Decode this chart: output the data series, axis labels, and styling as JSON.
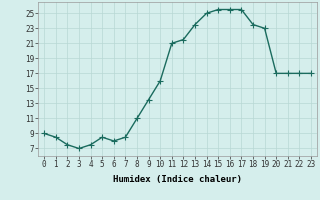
{
  "x": [
    0,
    1,
    2,
    3,
    4,
    5,
    6,
    7,
    8,
    9,
    10,
    11,
    12,
    13,
    14,
    15,
    16,
    17,
    18,
    19,
    20,
    21,
    22,
    23
  ],
  "y": [
    9,
    8.5,
    7.5,
    7,
    7.5,
    8.5,
    8,
    8.5,
    11,
    13.5,
    16,
    21,
    21.5,
    23.5,
    25,
    25.5,
    25.5,
    25.5,
    23.5,
    23,
    17,
    17,
    17,
    17
  ],
  "line_color": "#1a6b5e",
  "marker_color": "#1a6b5e",
  "bg_color": "#d5eeec",
  "grid_color": "#b8d8d4",
  "xlabel": "Humidex (Indice chaleur)",
  "xlim": [
    -0.5,
    23.5
  ],
  "ylim": [
    6,
    26.5
  ],
  "yticks": [
    7,
    9,
    11,
    13,
    15,
    17,
    19,
    21,
    23,
    25
  ],
  "xticks": [
    0,
    1,
    2,
    3,
    4,
    5,
    6,
    7,
    8,
    9,
    10,
    11,
    12,
    13,
    14,
    15,
    16,
    17,
    18,
    19,
    20,
    21,
    22,
    23
  ],
  "xtick_labels": [
    "0",
    "1",
    "2",
    "3",
    "4",
    "5",
    "6",
    "7",
    "8",
    "9",
    "10",
    "11",
    "12",
    "13",
    "14",
    "15",
    "16",
    "17",
    "18",
    "19",
    "20",
    "21",
    "22",
    "23"
  ],
  "xlabel_fontsize": 6.5,
  "tick_fontsize": 5.5,
  "marker_size": 2.0,
  "line_width": 1.0
}
